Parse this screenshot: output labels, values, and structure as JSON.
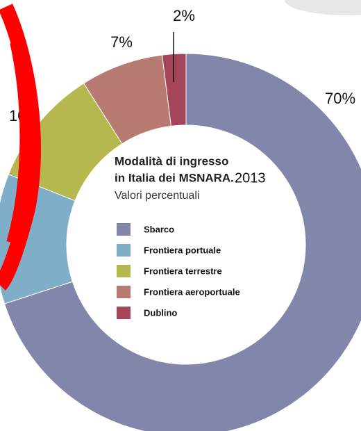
{
  "chart_data": {
    "type": "donut",
    "title": "Modalità di ingresso in Italia dei MSNARA.",
    "year": "2013",
    "subtitle": "Valori percentuali",
    "categories": [
      "Sbarco",
      "Frontiera portuale",
      "Frontiera terrestre",
      "Frontiera aeroportuale",
      "Dublino"
    ],
    "values": [
      70,
      11,
      10,
      7,
      2
    ],
    "value_labels": [
      "70%",
      null,
      "10%",
      "7%",
      "2%"
    ],
    "colors": [
      "#8286aa",
      "#7fafc8",
      "#b5b84e",
      "#b77b72",
      "#a5455a"
    ]
  }
}
